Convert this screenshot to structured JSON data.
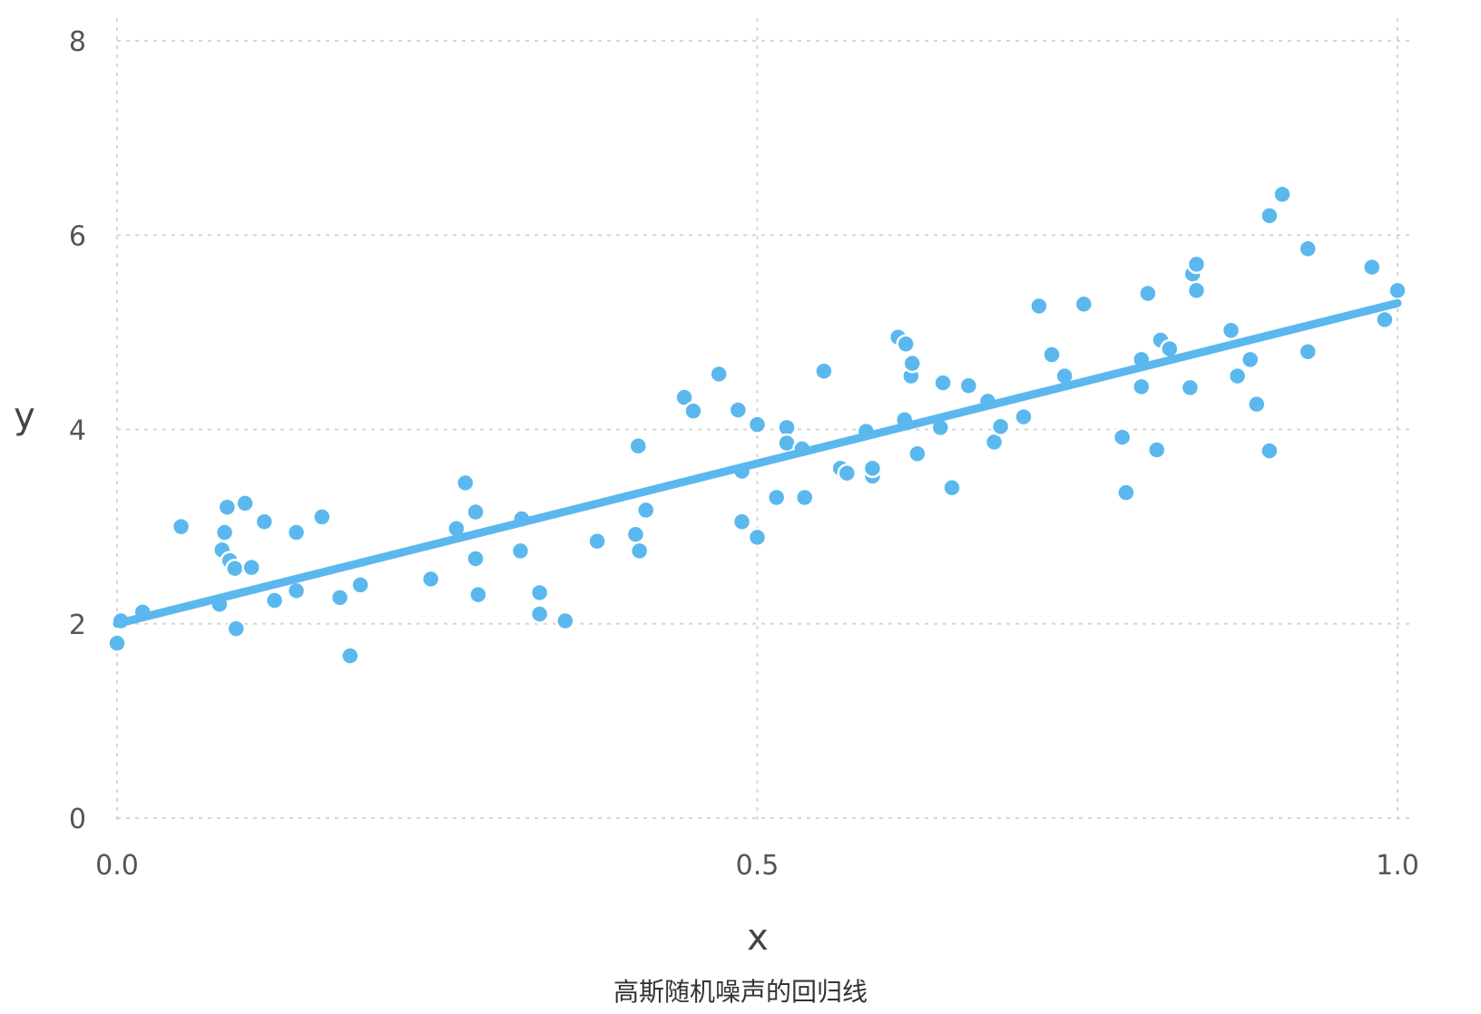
{
  "caption": "高斯随机噪声的回归线",
  "colors": {
    "point": "#5bb8ee",
    "line": "#5bb8ee",
    "grid": "#d6d6d6",
    "tick_text": "#555555"
  },
  "chart_data": {
    "type": "scatter",
    "xlabel": "x",
    "ylabel": "y",
    "xlim": [
      0,
      1
    ],
    "ylim": [
      0,
      8
    ],
    "xticks": [
      0,
      0.5,
      1
    ],
    "xtick_labels": [
      "0.0",
      "0.5",
      "1.0"
    ],
    "yticks": [
      0,
      2,
      4,
      6,
      8
    ],
    "ytick_labels": [
      "0",
      "2",
      "4",
      "6",
      "8"
    ],
    "grid": true,
    "fit_line": {
      "x": [
        0,
        1
      ],
      "y": [
        2.0,
        5.3
      ]
    },
    "points": [
      [
        0.0,
        1.8
      ],
      [
        0.003,
        2.03
      ],
      [
        0.02,
        2.12
      ],
      [
        0.05,
        3.0
      ],
      [
        0.08,
        2.2
      ],
      [
        0.082,
        2.76
      ],
      [
        0.084,
        2.94
      ],
      [
        0.086,
        3.2
      ],
      [
        0.088,
        2.65
      ],
      [
        0.092,
        2.57
      ],
      [
        0.093,
        1.95
      ],
      [
        0.1,
        3.24
      ],
      [
        0.105,
        2.58
      ],
      [
        0.115,
        3.05
      ],
      [
        0.123,
        2.24
      ],
      [
        0.14,
        2.94
      ],
      [
        0.14,
        2.37
      ],
      [
        0.14,
        2.34
      ],
      [
        0.16,
        3.1
      ],
      [
        0.174,
        2.27
      ],
      [
        0.182,
        1.67
      ],
      [
        0.19,
        2.4
      ],
      [
        0.245,
        2.46
      ],
      [
        0.265,
        2.98
      ],
      [
        0.272,
        3.45
      ],
      [
        0.28,
        3.15
      ],
      [
        0.28,
        2.67
      ],
      [
        0.282,
        2.3
      ],
      [
        0.315,
        2.75
      ],
      [
        0.316,
        3.08
      ],
      [
        0.33,
        2.32
      ],
      [
        0.33,
        2.1
      ],
      [
        0.35,
        2.03
      ],
      [
        0.375,
        2.85
      ],
      [
        0.405,
        2.92
      ],
      [
        0.407,
        3.83
      ],
      [
        0.408,
        2.75
      ],
      [
        0.413,
        3.17
      ],
      [
        0.443,
        4.33
      ],
      [
        0.45,
        4.19
      ],
      [
        0.47,
        4.57
      ],
      [
        0.485,
        4.2
      ],
      [
        0.488,
        3.05
      ],
      [
        0.488,
        3.57
      ],
      [
        0.5,
        4.05
      ],
      [
        0.5,
        2.89
      ],
      [
        0.515,
        3.3
      ],
      [
        0.523,
        4.02
      ],
      [
        0.523,
        3.86
      ],
      [
        0.535,
        3.8
      ],
      [
        0.537,
        3.3
      ],
      [
        0.552,
        4.6
      ],
      [
        0.565,
        3.6
      ],
      [
        0.57,
        3.55
      ],
      [
        0.585,
        3.98
      ],
      [
        0.59,
        3.52
      ],
      [
        0.59,
        3.6
      ],
      [
        0.61,
        4.95
      ],
      [
        0.615,
        4.1
      ],
      [
        0.616,
        4.88
      ],
      [
        0.62,
        4.55
      ],
      [
        0.621,
        4.68
      ],
      [
        0.625,
        3.75
      ],
      [
        0.643,
        4.02
      ],
      [
        0.645,
        4.48
      ],
      [
        0.652,
        3.4
      ],
      [
        0.665,
        4.45
      ],
      [
        0.68,
        4.29
      ],
      [
        0.685,
        3.87
      ],
      [
        0.69,
        4.03
      ],
      [
        0.708,
        4.13
      ],
      [
        0.72,
        5.27
      ],
      [
        0.73,
        4.77
      ],
      [
        0.74,
        4.55
      ],
      [
        0.755,
        5.29
      ],
      [
        0.785,
        3.92
      ],
      [
        0.788,
        3.35
      ],
      [
        0.8,
        4.72
      ],
      [
        0.8,
        4.44
      ],
      [
        0.805,
        5.4
      ],
      [
        0.812,
        3.79
      ],
      [
        0.815,
        4.92
      ],
      [
        0.822,
        4.83
      ],
      [
        0.838,
        4.43
      ],
      [
        0.84,
        5.6
      ],
      [
        0.843,
        5.7
      ],
      [
        0.843,
        5.43
      ],
      [
        0.87,
        5.02
      ],
      [
        0.875,
        4.55
      ],
      [
        0.885,
        4.72
      ],
      [
        0.89,
        4.26
      ],
      [
        0.9,
        3.78
      ],
      [
        0.9,
        6.2
      ],
      [
        0.91,
        6.42
      ],
      [
        0.93,
        5.86
      ],
      [
        0.93,
        4.8
      ],
      [
        0.98,
        5.67
      ],
      [
        0.99,
        5.13
      ],
      [
        1.0,
        5.43
      ]
    ]
  }
}
